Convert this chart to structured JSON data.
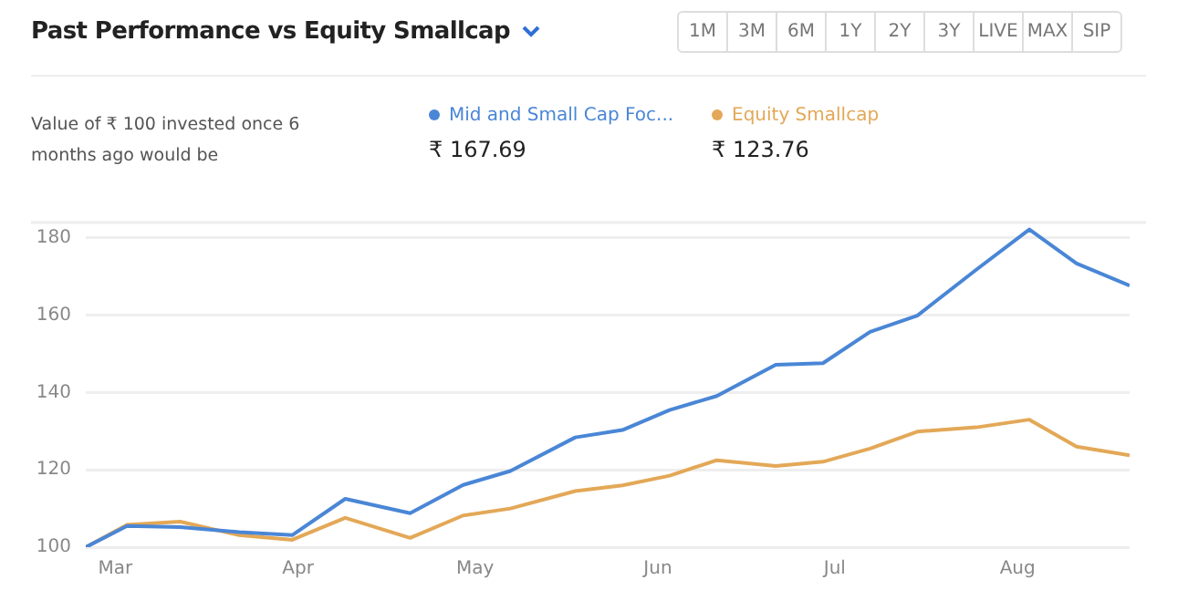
{
  "chart_data": {
    "type": "line",
    "title": "Past Performance vs Equity Smallcap",
    "x": [
      "--02-24",
      "--03-03",
      "--03-12",
      "--03-22",
      "--03-31",
      "--04-09",
      "--04-20",
      "--04-29",
      "--05-07",
      "--05-18",
      "--05-26",
      "--06-03",
      "--06-11",
      "--06-21",
      "--06-29",
      "--07-07",
      "--07-15",
      "--07-25",
      "--08-03",
      "--08-11",
      "--08-20"
    ],
    "series": [
      {
        "name": "Mid and Small Cap Foc...",
        "color": "#4a86d6",
        "values": [
          100,
          105.5,
          105.2,
          103.9,
          103.1,
          112.5,
          108.8,
          116.1,
          119.7,
          128.4,
          130.3,
          135.5,
          139.1,
          147.2,
          147.6,
          155.7,
          159.9,
          171.8,
          182.2,
          173.4,
          167.69
        ]
      },
      {
        "name": "Equity Smallcap",
        "color": "#e3a857",
        "values": [
          100,
          105.8,
          106.6,
          103.1,
          101.9,
          107.6,
          102.4,
          108.2,
          110,
          114.5,
          116,
          118.5,
          122.5,
          121,
          122.1,
          125.5,
          129.9,
          131,
          133,
          126,
          123.76
        ]
      }
    ],
    "xlim": [
      "--02-24",
      "--08-20"
    ],
    "xticks": [
      {
        "value": "--03-01",
        "label": "Mar"
      },
      {
        "value": "--04-01",
        "label": "Apr"
      },
      {
        "value": "--05-01",
        "label": "May"
      },
      {
        "value": "--06-01",
        "label": "Jun"
      },
      {
        "value": "--07-01",
        "label": "Jul"
      },
      {
        "value": "--08-01",
        "label": "Aug"
      }
    ],
    "ylim": [
      100,
      184
    ],
    "yticks": [
      100,
      120,
      140,
      160,
      180
    ],
    "grid": "y",
    "legend": "top",
    "marker": "none",
    "line_style": "solid",
    "annotations": [
      "Value of ₹ 100 invested once 6 months ago would be",
      "₹ 167.69",
      "₹ 123.76",
      "1M",
      "3M",
      "6M",
      "1Y",
      "2Y",
      "3Y",
      "LIVE",
      "MAX",
      "SIP"
    ]
  }
}
